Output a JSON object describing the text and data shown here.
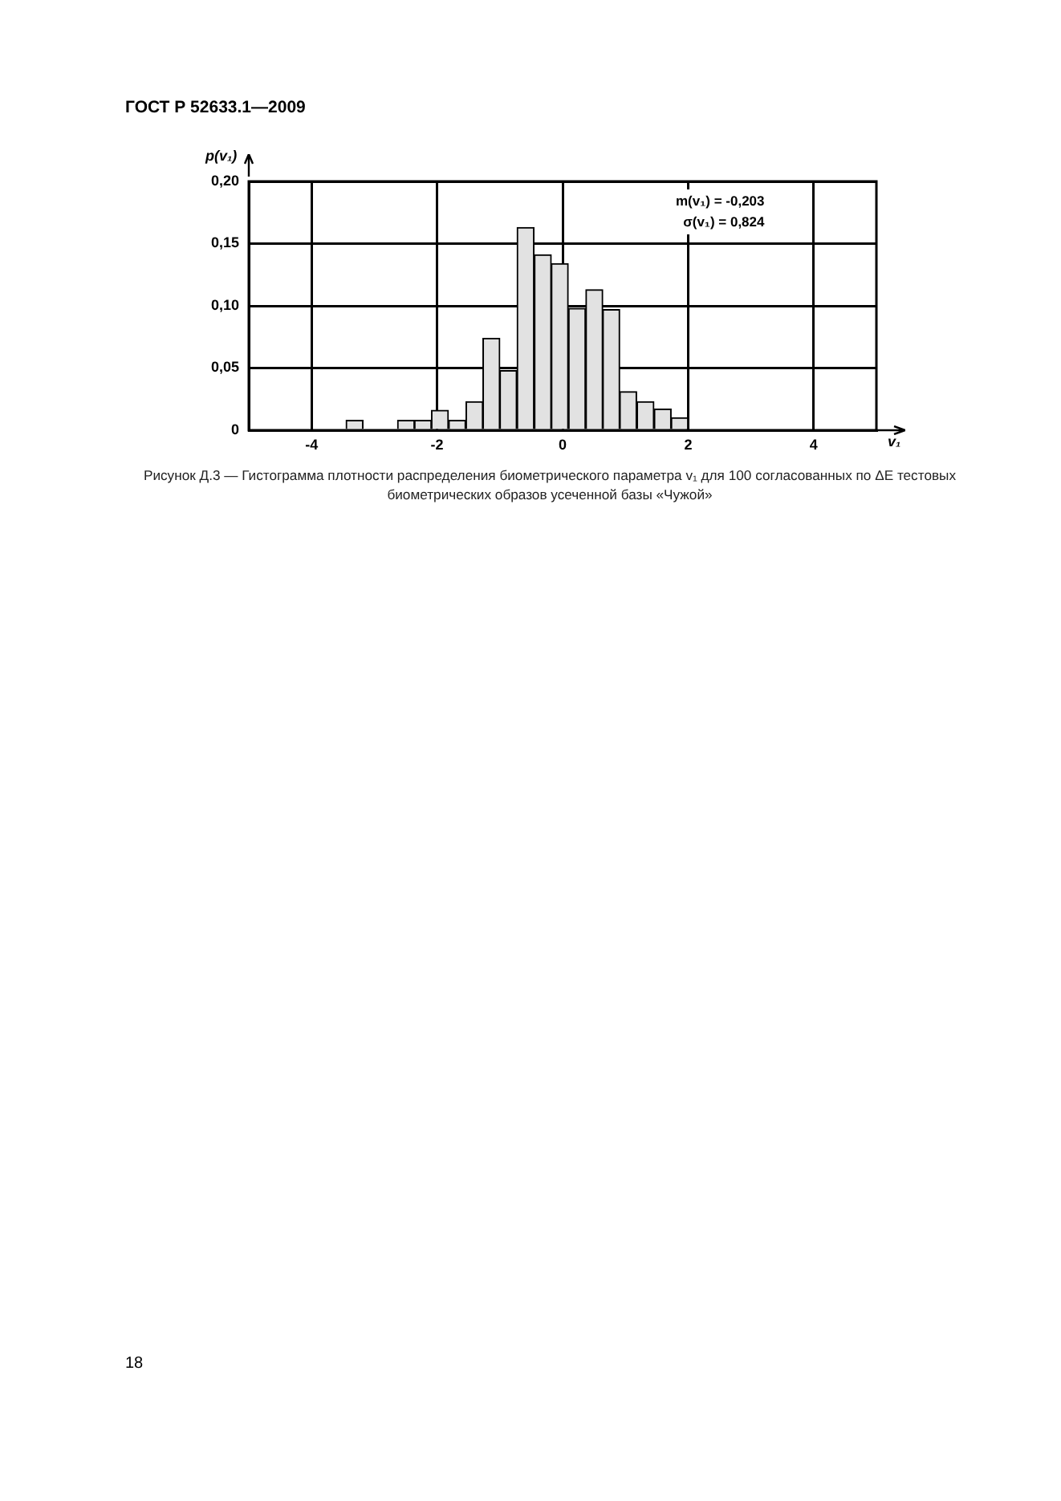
{
  "chart_data": {
    "type": "histogram",
    "xlabel": "v₁",
    "ylabel": "p(v₁)",
    "bins": [
      -3.45,
      -3.18,
      -2.91,
      -2.63,
      -2.36,
      -2.09,
      -1.82,
      -1.54,
      -1.27,
      -1.0,
      -0.73,
      -0.45,
      -0.18,
      0.09,
      0.37,
      0.64,
      0.91,
      1.18,
      1.46,
      1.73,
      2.0
    ],
    "values": [
      0.008,
      0,
      0,
      0.008,
      0.008,
      0.016,
      0.008,
      0.023,
      0.074,
      0.048,
      0.163,
      0.141,
      0.134,
      0.098,
      0.113,
      0.097,
      0.031,
      0.023,
      0.017,
      0.01
    ],
    "color": "#e2e2e2",
    "xlim": [
      -5,
      5
    ],
    "xticks": [
      -4,
      -2,
      0,
      2,
      4
    ],
    "ylim": [
      0,
      0.2
    ],
    "yticks": [
      0,
      {
        "value": 0.05,
        "label": "0,05"
      },
      {
        "value": 0.1,
        "label": "0,10"
      },
      {
        "value": 0.15,
        "label": "0,15"
      },
      {
        "value": 0.2,
        "label": "0,20"
      }
    ],
    "grid": true,
    "legend": false,
    "annotations": [
      "ГОСТ Р 52633.1—2009",
      "m(v₁) = -0,203",
      "σ(v₁) = 0,824",
      "Рисунок Д.3 — Гистограмма плотности распределения биометрического параметра v₁ для 100 согласованных по ΔE тестовых биометрических образов усеченной базы «Чужой»",
      "18"
    ]
  }
}
